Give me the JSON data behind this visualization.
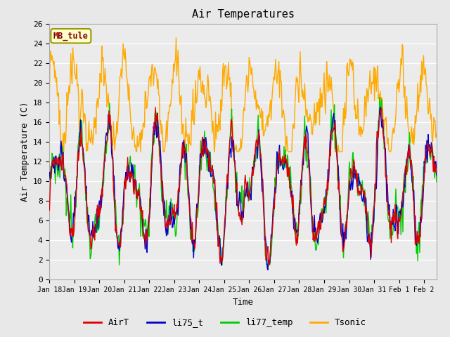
{
  "title": "Air Temperatures",
  "xlabel": "Time",
  "ylabel": "Air Temperature (C)",
  "ylim": [
    0,
    26
  ],
  "xlim_days": [
    0,
    15.5
  ],
  "station_label": "MB_tule",
  "line_colors": {
    "AirT": "#dd0000",
    "li75_t": "#0000cc",
    "li77_temp": "#00cc00",
    "Tsonic": "#ffaa00"
  },
  "bg_color": "#e8e8e8",
  "plot_bg": "#ebebeb",
  "x_tick_labels": [
    "Jan 18",
    "Jan 19",
    "Jan 20",
    "Jan 21",
    "Jan 22",
    "Jan 23",
    "Jan 24",
    "Jan 25",
    "Jan 26",
    "Jan 27",
    "Jan 28",
    "Jan 29",
    "Jan 30",
    "Jan 31",
    "Feb 1",
    "Feb 2"
  ],
  "x_tick_positions": [
    0,
    1,
    2,
    3,
    4,
    5,
    6,
    7,
    8,
    9,
    10,
    11,
    12,
    13,
    14,
    15
  ],
  "y_ticks": [
    0,
    2,
    4,
    6,
    8,
    10,
    12,
    14,
    16,
    18,
    20,
    22,
    24,
    26
  ],
  "font_family": "monospace"
}
